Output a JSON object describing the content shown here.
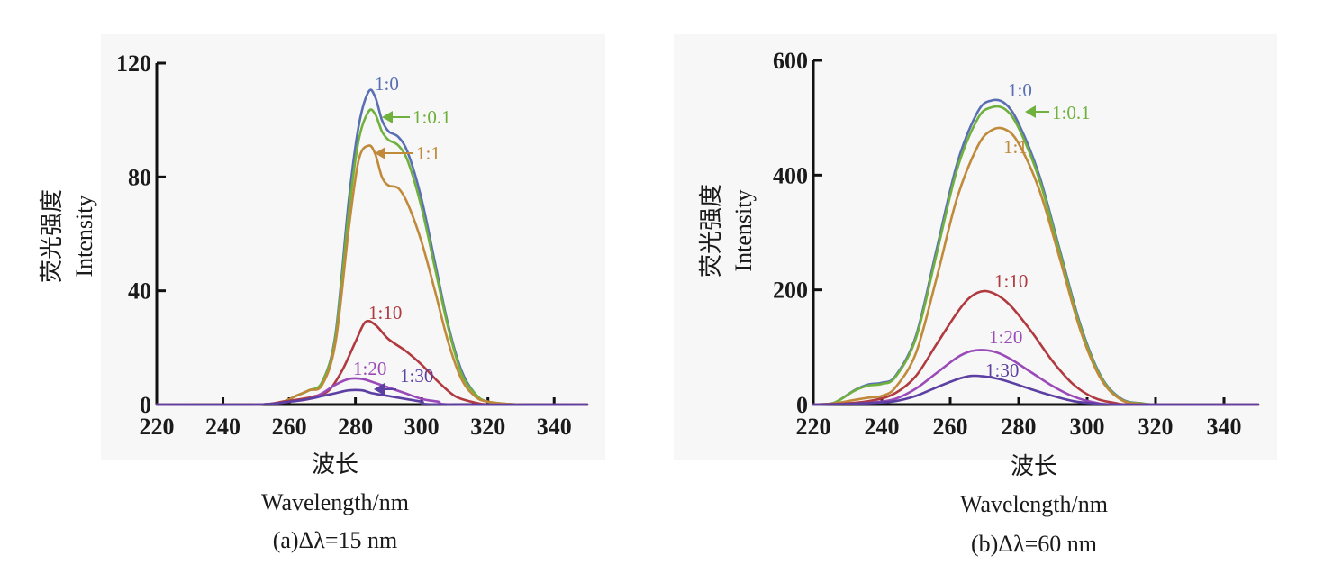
{
  "chart_data": [
    {
      "type": "line",
      "ylabel_cn": "荧光强度",
      "ylabel_en": "Intensity",
      "xlabel_cn": "波长",
      "xlabel_en": "Wavelength/nm",
      "caption": "(a)Δλ=15 nm",
      "xlim": [
        220,
        350
      ],
      "ylim": [
        0,
        120
      ],
      "xticks": [
        "220",
        "240",
        "260",
        "280",
        "300",
        "320",
        "340"
      ],
      "yticks": [
        "0",
        "40",
        "80",
        "120"
      ],
      "grid": false,
      "series": [
        {
          "name": "1:0",
          "color": "#5a6fb3",
          "x": [
            220,
            250,
            258,
            262,
            266,
            270,
            274,
            278,
            281,
            284,
            286,
            288,
            290,
            293,
            296,
            300,
            304,
            308,
            312,
            316,
            320,
            330,
            350
          ],
          "y": [
            0,
            0,
            1,
            3,
            5,
            8,
            25,
            72,
            98,
            110,
            108,
            100,
            96,
            94,
            88,
            72,
            50,
            28,
            12,
            4,
            1,
            0,
            0
          ]
        },
        {
          "name": "1:0.1",
          "color": "#6fb13c",
          "x": [
            220,
            250,
            258,
            262,
            266,
            270,
            274,
            278,
            281,
            284,
            286,
            288,
            290,
            293,
            296,
            300,
            304,
            308,
            312,
            316,
            320,
            330,
            350
          ],
          "y": [
            0,
            0,
            1,
            3,
            5,
            8,
            24,
            68,
            93,
            103,
            102,
            96,
            93,
            91,
            85,
            69,
            48,
            27,
            11,
            4,
            1,
            0,
            0
          ]
        },
        {
          "name": "1:1",
          "color": "#c08a3a",
          "x": [
            220,
            250,
            258,
            262,
            266,
            270,
            274,
            278,
            281,
            284,
            286,
            288,
            290,
            293,
            296,
            300,
            304,
            308,
            312,
            316,
            320,
            330,
            350
          ],
          "y": [
            0,
            0,
            1,
            3,
            5,
            7,
            22,
            62,
            86,
            91,
            88,
            80,
            77,
            76,
            70,
            57,
            40,
            22,
            9,
            3,
            1,
            0,
            0
          ]
        },
        {
          "name": "1:10",
          "color": "#b03a3f",
          "x": [
            220,
            250,
            258,
            264,
            268,
            272,
            276,
            280,
            283,
            286,
            290,
            295,
            300,
            305,
            310,
            315,
            320,
            330,
            350
          ],
          "y": [
            0,
            0,
            1,
            2,
            3,
            5,
            12,
            22,
            29,
            28,
            23,
            19,
            14,
            8,
            3,
            1,
            0,
            0,
            0
          ]
        },
        {
          "name": "1:20",
          "color": "#9a4ab8",
          "x": [
            220,
            250,
            260,
            266,
            270,
            274,
            278,
            282,
            285,
            290,
            295,
            300,
            305,
            310,
            350
          ],
          "y": [
            0,
            0,
            1,
            2,
            4,
            7,
            9,
            9,
            8,
            6,
            4,
            2,
            1,
            0,
            0
          ]
        },
        {
          "name": "1:30",
          "color": "#5c3fa3",
          "x": [
            220,
            250,
            260,
            266,
            270,
            274,
            278,
            282,
            285,
            290,
            295,
            300,
            305,
            350
          ],
          "y": [
            0,
            0,
            1,
            2,
            3,
            4,
            5,
            5,
            4,
            3,
            2,
            1,
            0,
            0
          ]
        }
      ]
    },
    {
      "type": "line",
      "ylabel_cn": "荧光强度",
      "ylabel_en": "Intensity",
      "xlabel_cn": "波长",
      "xlabel_en": "Wavelength/nm",
      "caption": "(b)Δλ=60 nm",
      "xlim": [
        220,
        350
      ],
      "ylim": [
        0,
        600
      ],
      "xticks": [
        "220",
        "240",
        "260",
        "280",
        "300",
        "320",
        "340"
      ],
      "yticks": [
        "0",
        "200",
        "400",
        "600"
      ],
      "grid": false,
      "series": [
        {
          "name": "1:0",
          "color": "#5a6fb3",
          "x": [
            220,
            226,
            232,
            236,
            240,
            244,
            250,
            256,
            262,
            268,
            272,
            276,
            280,
            286,
            292,
            298,
            304,
            310,
            316,
            320,
            330,
            350
          ],
          "y": [
            0,
            3,
            25,
            35,
            38,
            50,
            120,
            270,
            420,
            510,
            530,
            525,
            490,
            400,
            270,
            140,
            50,
            10,
            2,
            0,
            0,
            0
          ]
        },
        {
          "name": "1:0.1",
          "color": "#6fb13c",
          "x": [
            220,
            226,
            232,
            236,
            240,
            244,
            250,
            256,
            262,
            268,
            272,
            276,
            280,
            286,
            292,
            298,
            304,
            310,
            316,
            320,
            330,
            350
          ],
          "y": [
            0,
            3,
            24,
            33,
            36,
            48,
            116,
            262,
            410,
            498,
            518,
            515,
            482,
            393,
            265,
            136,
            48,
            9,
            2,
            0,
            0,
            0
          ]
        },
        {
          "name": "1:1",
          "color": "#c08a3a",
          "x": [
            220,
            226,
            232,
            236,
            240,
            244,
            250,
            256,
            262,
            268,
            272,
            276,
            280,
            286,
            292,
            298,
            304,
            310,
            316,
            320,
            330,
            350
          ],
          "y": [
            0,
            2,
            8,
            12,
            15,
            30,
            90,
            220,
            360,
            450,
            478,
            480,
            455,
            375,
            255,
            130,
            45,
            8,
            1,
            0,
            0,
            0
          ]
        },
        {
          "name": "1:10",
          "color": "#b03a3f",
          "x": [
            220,
            230,
            238,
            244,
            250,
            256,
            262,
            266,
            270,
            274,
            278,
            284,
            290,
            296,
            302,
            308,
            315,
            350
          ],
          "y": [
            0,
            2,
            8,
            20,
            50,
            105,
            160,
            188,
            198,
            190,
            170,
            125,
            75,
            35,
            12,
            3,
            0,
            0
          ]
        },
        {
          "name": "1:20",
          "color": "#9a4ab8",
          "x": [
            220,
            230,
            238,
            244,
            250,
            256,
            262,
            266,
            270,
            274,
            278,
            284,
            290,
            296,
            302,
            310,
            350
          ],
          "y": [
            0,
            1,
            4,
            10,
            28,
            55,
            82,
            93,
            95,
            90,
            78,
            55,
            32,
            14,
            4,
            0,
            0
          ]
        },
        {
          "name": "1:30",
          "color": "#5c3fa3",
          "x": [
            220,
            230,
            238,
            244,
            250,
            256,
            262,
            266,
            270,
            274,
            278,
            284,
            290,
            296,
            302,
            310,
            350
          ],
          "y": [
            0,
            1,
            3,
            6,
            15,
            30,
            44,
            50,
            49,
            45,
            38,
            26,
            15,
            6,
            2,
            0,
            0
          ]
        }
      ]
    }
  ],
  "chart_labels": [
    {
      "name": "1:0",
      "text": "1:0"
    },
    {
      "name": "1:0.1",
      "text": "1:0.1"
    },
    {
      "name": "1:1",
      "text": "1:1"
    },
    {
      "name": "1:10",
      "text": "1:10"
    },
    {
      "name": "1:20",
      "text": "1:20"
    },
    {
      "name": "1:30",
      "text": "1:30"
    }
  ]
}
